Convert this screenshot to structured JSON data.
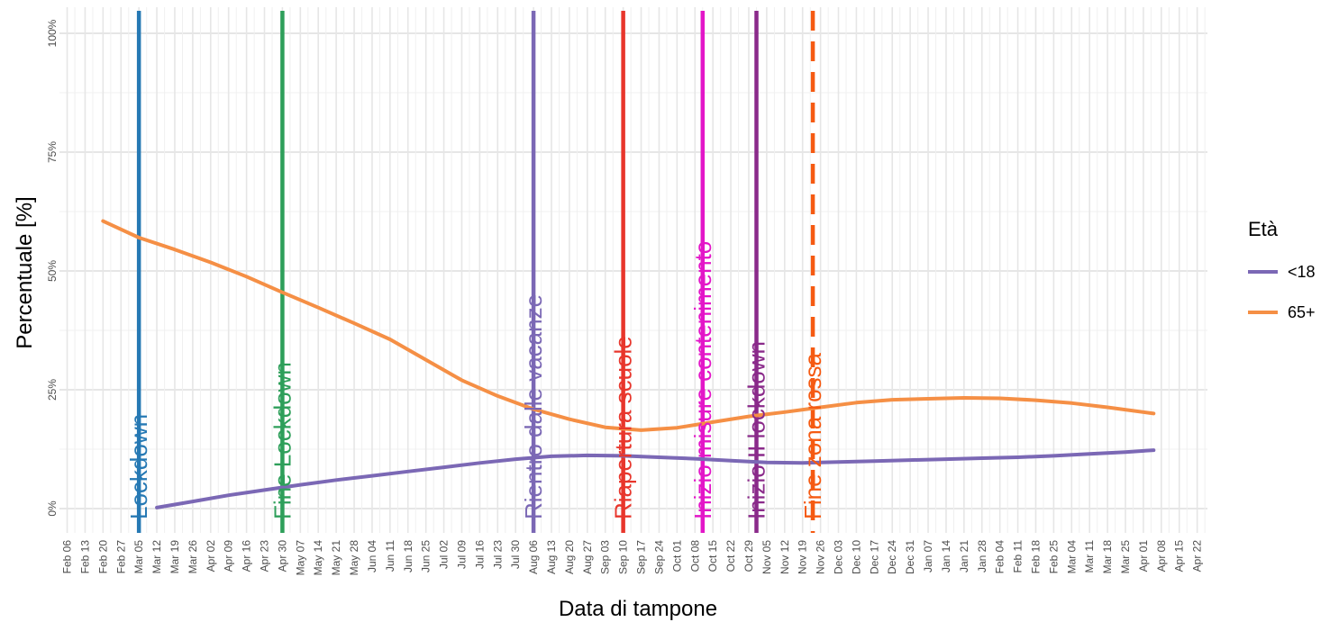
{
  "chart_data": {
    "type": "line",
    "xlabel": "Data di tampone",
    "ylabel": "Percentuale [%]",
    "x_range": [
      "2020-02-03",
      "2021-04-26"
    ],
    "ylim": [
      0,
      100
    ],
    "y_ticks": [
      {
        "value": 0,
        "label": "0%"
      },
      {
        "value": 25,
        "label": "25%"
      },
      {
        "value": 50,
        "label": "50%"
      },
      {
        "value": 75,
        "label": "75%"
      },
      {
        "value": 100,
        "label": "100%"
      }
    ],
    "x_ticks": [
      {
        "date": "2020-02-06",
        "label": "Feb 06"
      },
      {
        "date": "2020-02-13",
        "label": "Feb 13"
      },
      {
        "date": "2020-02-20",
        "label": "Feb 20"
      },
      {
        "date": "2020-02-27",
        "label": "Feb 27"
      },
      {
        "date": "2020-03-05",
        "label": "Mar 05"
      },
      {
        "date": "2020-03-12",
        "label": "Mar 12"
      },
      {
        "date": "2020-03-19",
        "label": "Mar 19"
      },
      {
        "date": "2020-03-26",
        "label": "Mar 26"
      },
      {
        "date": "2020-04-02",
        "label": "Apr 02"
      },
      {
        "date": "2020-04-09",
        "label": "Apr 09"
      },
      {
        "date": "2020-04-16",
        "label": "Apr 16"
      },
      {
        "date": "2020-04-23",
        "label": "Apr 23"
      },
      {
        "date": "2020-04-30",
        "label": "Apr 30"
      },
      {
        "date": "2020-05-07",
        "label": "May 07"
      },
      {
        "date": "2020-05-14",
        "label": "May 14"
      },
      {
        "date": "2020-05-21",
        "label": "May 21"
      },
      {
        "date": "2020-05-28",
        "label": "May 28"
      },
      {
        "date": "2020-06-04",
        "label": "Jun 04"
      },
      {
        "date": "2020-06-11",
        "label": "Jun 11"
      },
      {
        "date": "2020-06-18",
        "label": "Jun 18"
      },
      {
        "date": "2020-06-25",
        "label": "Jun 25"
      },
      {
        "date": "2020-07-02",
        "label": "Jul 02"
      },
      {
        "date": "2020-07-09",
        "label": "Jul 09"
      },
      {
        "date": "2020-07-16",
        "label": "Jul 16"
      },
      {
        "date": "2020-07-23",
        "label": "Jul 23"
      },
      {
        "date": "2020-07-30",
        "label": "Jul 30"
      },
      {
        "date": "2020-08-06",
        "label": "Aug 06"
      },
      {
        "date": "2020-08-13",
        "label": "Aug 13"
      },
      {
        "date": "2020-08-20",
        "label": "Aug 20"
      },
      {
        "date": "2020-08-27",
        "label": "Aug 27"
      },
      {
        "date": "2020-09-03",
        "label": "Sep 03"
      },
      {
        "date": "2020-09-10",
        "label": "Sep 10"
      },
      {
        "date": "2020-09-17",
        "label": "Sep 17"
      },
      {
        "date": "2020-09-24",
        "label": "Sep 24"
      },
      {
        "date": "2020-10-01",
        "label": "Oct 01"
      },
      {
        "date": "2020-10-08",
        "label": "Oct 08"
      },
      {
        "date": "2020-10-15",
        "label": "Oct 15"
      },
      {
        "date": "2020-10-22",
        "label": "Oct 22"
      },
      {
        "date": "2020-10-29",
        "label": "Oct 29"
      },
      {
        "date": "2020-11-05",
        "label": "Nov 05"
      },
      {
        "date": "2020-11-12",
        "label": "Nov 12"
      },
      {
        "date": "2020-11-19",
        "label": "Nov 19"
      },
      {
        "date": "2020-11-26",
        "label": "Nov 26"
      },
      {
        "date": "2020-12-03",
        "label": "Dec 03"
      },
      {
        "date": "2020-12-10",
        "label": "Dec 10"
      },
      {
        "date": "2020-12-17",
        "label": "Dec 17"
      },
      {
        "date": "2020-12-24",
        "label": "Dec 24"
      },
      {
        "date": "2020-12-31",
        "label": "Dec 31"
      },
      {
        "date": "2021-01-07",
        "label": "Jan 07"
      },
      {
        "date": "2021-01-14",
        "label": "Jan 14"
      },
      {
        "date": "2021-01-21",
        "label": "Jan 21"
      },
      {
        "date": "2021-01-28",
        "label": "Jan 28"
      },
      {
        "date": "2021-02-04",
        "label": "Feb 04"
      },
      {
        "date": "2021-02-11",
        "label": "Feb 11"
      },
      {
        "date": "2021-02-18",
        "label": "Feb 18"
      },
      {
        "date": "2021-02-25",
        "label": "Feb 25"
      },
      {
        "date": "2021-03-04",
        "label": "Mar 04"
      },
      {
        "date": "2021-03-11",
        "label": "Mar 11"
      },
      {
        "date": "2021-03-18",
        "label": "Mar 18"
      },
      {
        "date": "2021-03-25",
        "label": "Mar 25"
      },
      {
        "date": "2021-04-01",
        "label": "Apr 01"
      },
      {
        "date": "2021-04-08",
        "label": "Apr 08"
      },
      {
        "date": "2021-04-15",
        "label": "Apr 15"
      },
      {
        "date": "2021-04-22",
        "label": "Apr 22"
      }
    ],
    "grid": true,
    "legend": {
      "title": "Età",
      "position": "right"
    },
    "series": [
      {
        "name": "<18",
        "color": "#7b68b5",
        "points": [
          [
            "2020-03-12",
            0.2
          ],
          [
            "2020-03-26",
            1.5
          ],
          [
            "2020-04-09",
            2.8
          ],
          [
            "2020-04-23",
            3.9
          ],
          [
            "2020-05-07",
            5.0
          ],
          [
            "2020-05-21",
            6.0
          ],
          [
            "2020-06-04",
            6.9
          ],
          [
            "2020-06-18",
            7.8
          ],
          [
            "2020-07-02",
            8.7
          ],
          [
            "2020-07-16",
            9.6
          ],
          [
            "2020-07-30",
            10.4
          ],
          [
            "2020-08-13",
            11.0
          ],
          [
            "2020-08-27",
            11.2
          ],
          [
            "2020-09-10",
            11.1
          ],
          [
            "2020-09-24",
            10.8
          ],
          [
            "2020-10-08",
            10.5
          ],
          [
            "2020-10-22",
            10.1
          ],
          [
            "2020-11-05",
            9.7
          ],
          [
            "2020-11-19",
            9.6
          ],
          [
            "2020-12-03",
            9.8
          ],
          [
            "2020-12-17",
            10.0
          ],
          [
            "2020-12-31",
            10.2
          ],
          [
            "2021-01-14",
            10.4
          ],
          [
            "2021-01-28",
            10.6
          ],
          [
            "2021-02-11",
            10.8
          ],
          [
            "2021-02-25",
            11.1
          ],
          [
            "2021-03-11",
            11.5
          ],
          [
            "2021-03-25",
            11.9
          ],
          [
            "2021-04-05",
            12.3
          ]
        ]
      },
      {
        "name": "65+",
        "color": "#f58f45",
        "points": [
          [
            "2020-02-20",
            60.5
          ],
          [
            "2020-03-05",
            57.0
          ],
          [
            "2020-03-19",
            54.5
          ],
          [
            "2020-04-02",
            51.8
          ],
          [
            "2020-04-16",
            48.8
          ],
          [
            "2020-04-30",
            45.5
          ],
          [
            "2020-05-14",
            42.3
          ],
          [
            "2020-05-28",
            39.0
          ],
          [
            "2020-06-11",
            35.6
          ],
          [
            "2020-06-25",
            31.3
          ],
          [
            "2020-07-09",
            27.0
          ],
          [
            "2020-07-23",
            23.7
          ],
          [
            "2020-08-06",
            20.9
          ],
          [
            "2020-08-20",
            18.8
          ],
          [
            "2020-09-03",
            17.1
          ],
          [
            "2020-09-17",
            16.5
          ],
          [
            "2020-10-01",
            17.0
          ],
          [
            "2020-10-15",
            18.2
          ],
          [
            "2020-10-29",
            19.4
          ],
          [
            "2020-11-12",
            20.3
          ],
          [
            "2020-11-26",
            21.3
          ],
          [
            "2020-12-10",
            22.3
          ],
          [
            "2020-12-24",
            22.9
          ],
          [
            "2021-01-07",
            23.1
          ],
          [
            "2021-01-21",
            23.3
          ],
          [
            "2021-02-04",
            23.2
          ],
          [
            "2021-02-18",
            22.8
          ],
          [
            "2021-03-04",
            22.2
          ],
          [
            "2021-03-18",
            21.3
          ],
          [
            "2021-04-05",
            20.0
          ]
        ]
      }
    ],
    "events": [
      {
        "date": "2020-03-05",
        "label": "Lockdown",
        "color": "#2679b4",
        "style": "solid"
      },
      {
        "date": "2020-04-30",
        "label": "Fine Lockdown",
        "color": "#2e9f5a",
        "style": "solid"
      },
      {
        "date": "2020-08-06",
        "label": "Rientro dalle vacanze",
        "color": "#7b68b5",
        "style": "solid"
      },
      {
        "date": "2020-09-10",
        "label": "Riapertura scuole",
        "color": "#e8362c",
        "style": "solid"
      },
      {
        "date": "2020-10-11",
        "label": "Inizio misure contenimento",
        "color": "#e316c8",
        "style": "solid"
      },
      {
        "date": "2020-11-01",
        "label": "Inizio II lockdown",
        "color": "#8a2a8a",
        "style": "solid"
      },
      {
        "date": "2020-11-23",
        "label": "Fine zona rossa",
        "color": "#f55a12",
        "style": "dashed"
      }
    ]
  }
}
